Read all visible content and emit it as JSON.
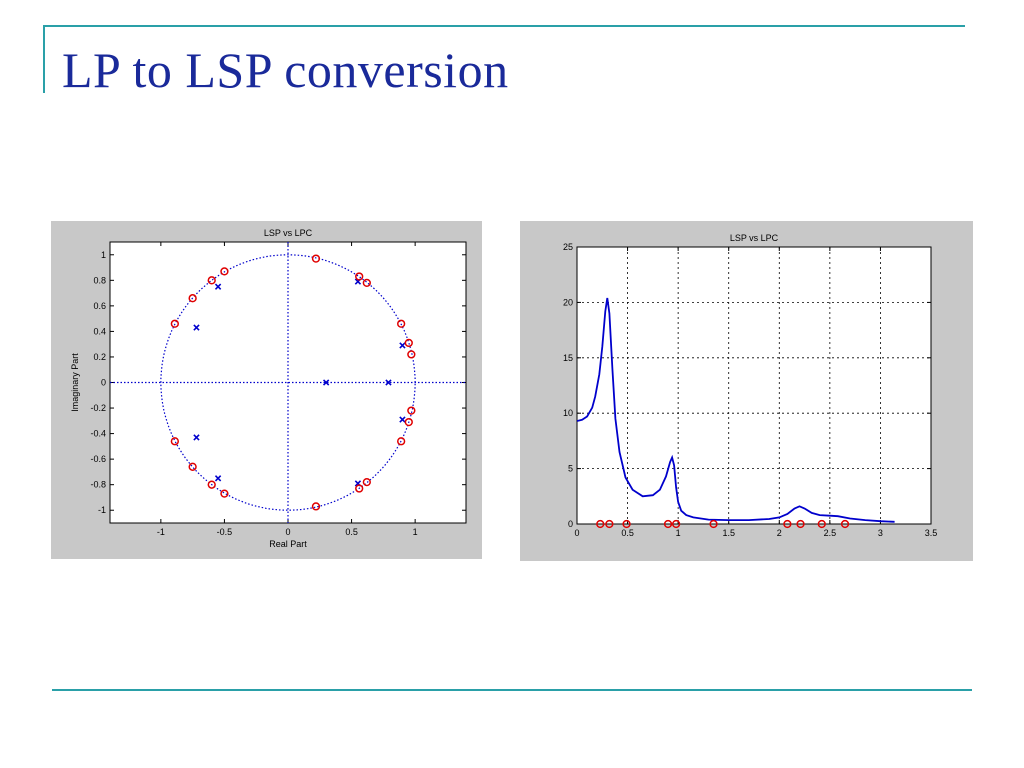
{
  "slide": {
    "title": "LP to LSP conversion"
  },
  "colors": {
    "accent_rule": "#2aa0a8",
    "title": "#1a2a9a",
    "series_blue": "#0000cc",
    "marker_red": "#e00000",
    "figure_bg": "#c8c8c8"
  },
  "chart_data": [
    {
      "type": "scatter",
      "title": "LSP vs LPC",
      "xlabel": "Real Part",
      "ylabel": "Imaginary Part",
      "xlim": [
        -1.4,
        1.4
      ],
      "ylim": [
        -1.1,
        1.1
      ],
      "xticks": [
        -1,
        -0.5,
        0,
        0.5,
        1
      ],
      "xtick_labels": [
        "-1",
        "-0.5",
        "0",
        "0.5",
        "1"
      ],
      "yticks": [
        -1,
        -0.8,
        -0.6,
        -0.4,
        -0.2,
        0,
        0.2,
        0.4,
        0.6,
        0.8,
        1
      ],
      "ytick_labels": [
        "-1",
        "-0.8",
        "-0.6",
        "-0.4",
        "-0.2",
        "0",
        "0.2",
        "0.4",
        "0.6",
        "0.8",
        "1"
      ],
      "grid": false,
      "unit_circle": true,
      "series": [
        {
          "marker": "x",
          "color": "#0000cc",
          "x": [
            -0.55,
            -0.72,
            0.55,
            0.9,
            0.3,
            0.79,
            0.9,
            0.55,
            -0.72,
            -0.55
          ],
          "y": [
            0.75,
            0.43,
            0.79,
            0.29,
            0,
            0,
            -0.29,
            -0.79,
            -0.43,
            -0.75
          ]
        },
        {
          "marker": "o",
          "color": "#e00000",
          "x": [
            -0.5,
            -0.6,
            -0.75,
            -0.89,
            0.22,
            0.56,
            0.62,
            0.89,
            0.95,
            0.97,
            0.97,
            0.95,
            0.89,
            0.62,
            0.56,
            0.22,
            -0.5,
            -0.6,
            -0.75,
            -0.89
          ],
          "y": [
            0.87,
            0.8,
            0.66,
            0.46,
            0.97,
            0.83,
            0.78,
            0.46,
            0.31,
            0.22,
            -0.22,
            -0.31,
            -0.46,
            -0.78,
            -0.83,
            -0.97,
            -0.87,
            -0.8,
            -0.66,
            -0.46
          ]
        }
      ]
    },
    {
      "type": "line",
      "title": "LSP vs LPC",
      "xlabel": "",
      "ylabel": "",
      "xlim": [
        0,
        3.5
      ],
      "ylim": [
        0,
        25
      ],
      "xticks": [
        0,
        0.5,
        1,
        1.5,
        2,
        2.5,
        3,
        3.5
      ],
      "xtick_labels": [
        "0",
        "0.5",
        "1",
        "1.5",
        "2",
        "2.5",
        "3",
        "3.5"
      ],
      "yticks": [
        0,
        5,
        10,
        15,
        20,
        25
      ],
      "ytick_labels": [
        "0",
        "5",
        "10",
        "15",
        "20",
        "25"
      ],
      "grid": true,
      "series": [
        {
          "kind": "line",
          "color": "#0000cc",
          "x": [
            0,
            0.05,
            0.1,
            0.15,
            0.18,
            0.22,
            0.25,
            0.28,
            0.3,
            0.32,
            0.35,
            0.38,
            0.42,
            0.48,
            0.55,
            0.65,
            0.75,
            0.82,
            0.88,
            0.92,
            0.94,
            0.96,
            0.98,
            1.0,
            1.03,
            1.08,
            1.15,
            1.3,
            1.5,
            1.7,
            1.9,
            2.0,
            2.08,
            2.15,
            2.2,
            2.25,
            2.32,
            2.4,
            2.5,
            2.58,
            2.7,
            2.85,
            3.0,
            3.14
          ],
          "y": [
            9.3,
            9.4,
            9.7,
            10.5,
            11.5,
            13.5,
            16.0,
            19.2,
            20.4,
            19.0,
            14.0,
            9.5,
            6.5,
            4.2,
            3.1,
            2.5,
            2.6,
            3.1,
            4.3,
            5.6,
            6.0,
            5.3,
            3.3,
            2.0,
            1.2,
            0.8,
            0.6,
            0.4,
            0.35,
            0.35,
            0.45,
            0.6,
            0.9,
            1.4,
            1.6,
            1.4,
            1.0,
            0.8,
            0.75,
            0.7,
            0.5,
            0.35,
            0.25,
            0.2
          ]
        },
        {
          "kind": "markers",
          "marker": "o",
          "color": "#e00000",
          "x": [
            0.23,
            0.32,
            0.49,
            0.9,
            0.98,
            1.35,
            2.08,
            2.21,
            2.42,
            2.65
          ],
          "y": [
            0,
            0,
            0,
            0,
            0,
            0,
            0,
            0,
            0,
            0
          ]
        }
      ]
    }
  ]
}
